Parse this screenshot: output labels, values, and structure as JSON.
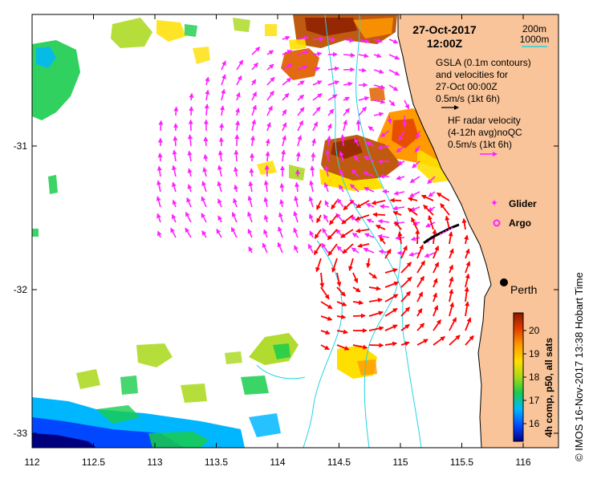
{
  "header": {
    "date": "27-Oct-2017",
    "time": "12:00Z"
  },
  "scale": {
    "depth_a": "200m",
    "depth_b": "1000m"
  },
  "gsla": {
    "line1": "GSLA (0.1m contours)",
    "line2": "and velocities for",
    "line3": "27-Oct 00:00Z",
    "line4": "0.5m/s (1kt 6h)"
  },
  "hf": {
    "line1": "HF radar velocity",
    "line2": "(4-12h avg)noQC",
    "line3": "0.5m/s (1kt 6h)"
  },
  "legend": {
    "glider": "Glider",
    "argo": "Argo"
  },
  "city": {
    "name": "Perth"
  },
  "colorbar": {
    "labels": [
      "20",
      "19",
      "18",
      "17",
      "16"
    ],
    "caption": "4h comp, p50, all sats",
    "colors": [
      "#00007f",
      "#0047ff",
      "#00b7ff",
      "#19cc4c",
      "#a8d818",
      "#ffdf00",
      "#ff9a00",
      "#e23b00",
      "#8b1a00"
    ]
  },
  "credit": "© IMOS 16-Nov-2017 13:38 Hobart Time",
  "axes": {
    "x_ticks": [
      "112",
      "112.5",
      "113",
      "113.5",
      "114",
      "114.5",
      "115",
      "115.5",
      "116"
    ],
    "y_ticks": [
      "-31",
      "-32",
      "-33"
    ]
  },
  "colors": {
    "land": "#f9c499",
    "isobath": "#22d3e6",
    "hf_arrow": "#ff22ff",
    "gsla_arrow": "#ff0000"
  }
}
